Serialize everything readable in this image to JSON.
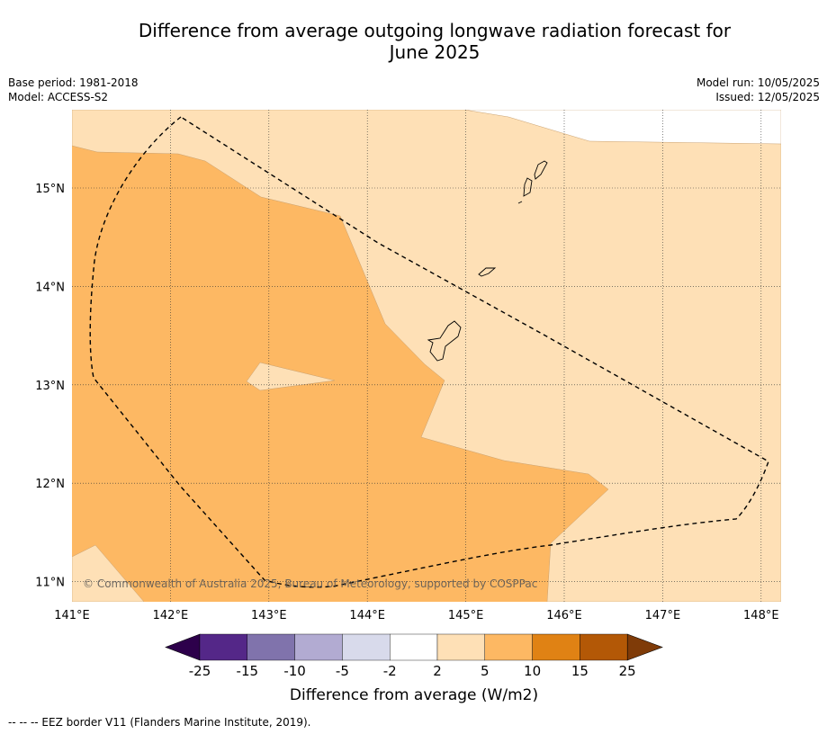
{
  "title_line1": "Difference from average outgoing longwave radiation forecast for",
  "title_line2": "June 2025",
  "base_period": "Base period: 1981-2018",
  "model": "Model: ACCESS-S2",
  "model_run": "Model run: 10/05/2025",
  "issued": "Issued: 12/05/2025",
  "copyright": "© Commonwealth of Australia 2025, Bureau of Meteorology, supported by COSPPac",
  "footnote": "--  --  -- EEZ border V11 (Flanders Marine Institute, 2019).",
  "map": {
    "lon_ticks": [
      "141°E",
      "142°E",
      "143°E",
      "144°E",
      "145°E",
      "146°E",
      "147°E",
      "148°E"
    ],
    "lat_ticks": [
      "15°N",
      "14°N",
      "13°N",
      "12°N",
      "11°N"
    ]
  },
  "colorbar": {
    "label": "Difference from average (W/m2)",
    "ticks": [
      "-25",
      "-15",
      "-10",
      "-5",
      "-2",
      "2",
      "5",
      "10",
      "15",
      "25"
    ],
    "colors": {
      "under": "#2d004b",
      "bins": [
        "#542788",
        "#8073ac",
        "#b2abd2",
        "#d8daeb",
        "#ffffff",
        "#fee0b6",
        "#fdb863",
        "#e08214",
        "#b35806"
      ],
      "over": "#7f3b08"
    }
  }
}
